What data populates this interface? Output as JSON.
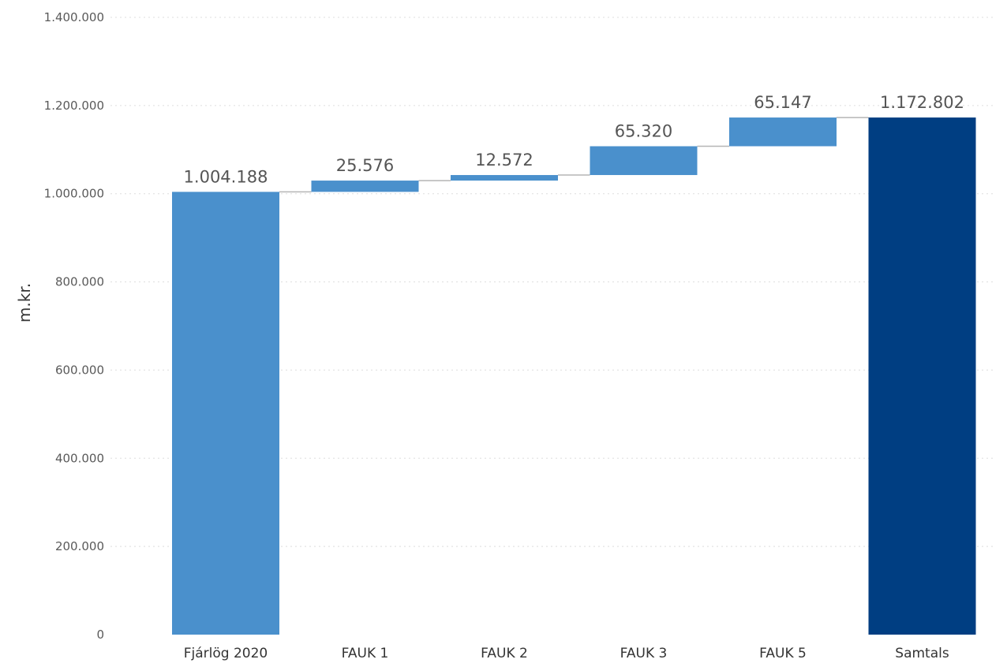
{
  "chart_data": {
    "type": "bar",
    "subtype": "waterfall",
    "title": "",
    "xlabel": "",
    "ylabel": "m.kr.",
    "ylim": [
      0,
      1400000
    ],
    "yticks": [
      0,
      200000,
      400000,
      600000,
      800000,
      1000000,
      1200000,
      1400000
    ],
    "ytick_labels": [
      "0",
      "200.000",
      "400.000",
      "600.000",
      "800.000",
      "1.000.000",
      "1.200.000",
      "1.400.000"
    ],
    "grid": true,
    "legend": "none",
    "categories": [
      "Fjárlög 2020",
      "FAUK 1",
      "FAUK 2",
      "FAUK 3",
      "FAUK 5",
      "Samtals"
    ],
    "values": [
      1004188,
      25576,
      12572,
      65320,
      65147,
      1172802
    ],
    "data_labels": [
      "1.004.188",
      "25.576",
      "12.572",
      "65.320",
      "65.147",
      "1.172.802"
    ],
    "bar_kinds": [
      "total",
      "increase",
      "increase",
      "increase",
      "increase",
      "total"
    ],
    "colors": {
      "increase": "#4a90cc",
      "start": "#4a90cc",
      "total": "#003e82"
    }
  }
}
